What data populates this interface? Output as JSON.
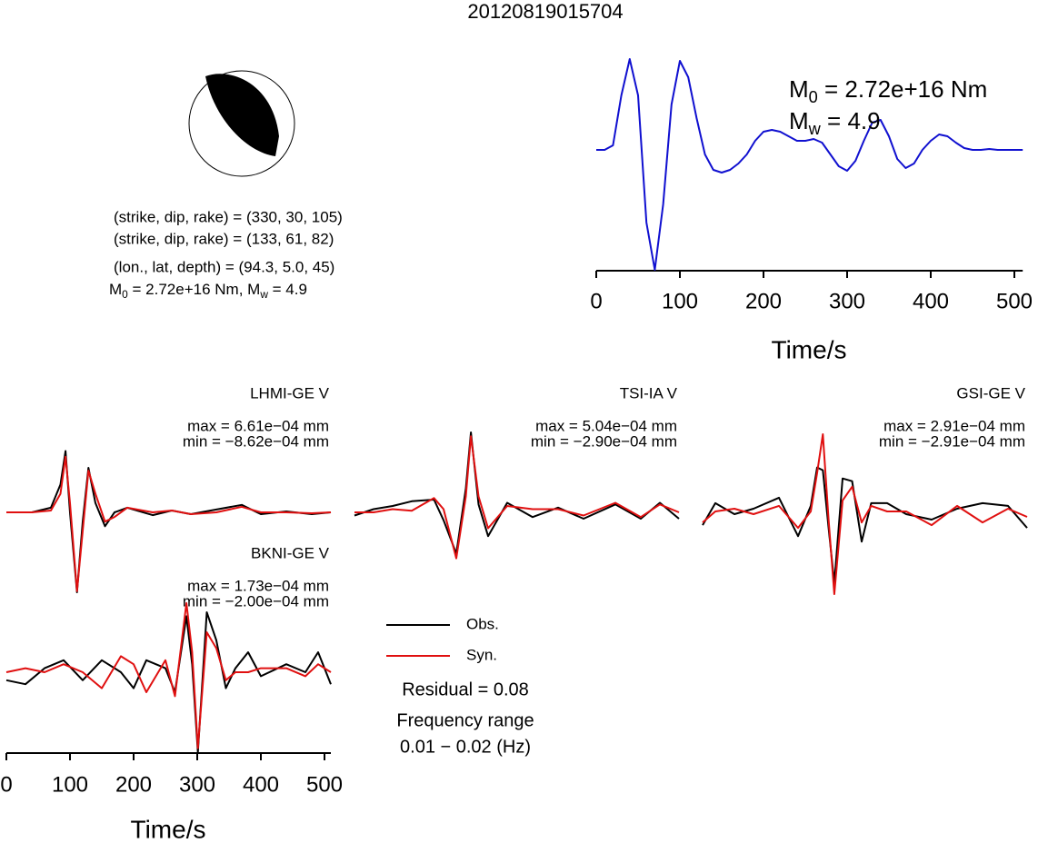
{
  "title": "20120819015704",
  "focal_mechanism": {
    "lines": [
      "(strike, dip, rake) = (330, 30, 105)",
      "(strike, dip, rake) = (133, 61, 82)",
      "(lon., lat, depth) = (94.3, 5.0, 45)"
    ],
    "moment_line": [
      "M",
      "0",
      " = 2.72e+16 Nm, M",
      "w",
      " = 4.9"
    ]
  },
  "summary": {
    "residual": "Residual = 0.08",
    "frequency_label": "Frequency range",
    "frequency": "0.01 − 0.02 (Hz)"
  },
  "chart_data": [
    {
      "type": "line",
      "annotations": [
        [
          "M",
          "0",
          " = 2.72e+16 Nm"
        ],
        [
          "M",
          "w",
          " = 4.9"
        ]
      ],
      "xlabel": "Time/s",
      "xlim": [
        0,
        510
      ],
      "xticks": [
        0,
        100,
        200,
        300,
        400,
        500
      ],
      "x": [
        0,
        10,
        20,
        30,
        40,
        50,
        60,
        70,
        80,
        90,
        100,
        110,
        120,
        130,
        140,
        150,
        160,
        170,
        180,
        190,
        200,
        210,
        220,
        230,
        240,
        250,
        260,
        270,
        280,
        290,
        300,
        310,
        320,
        330,
        340,
        350,
        360,
        370,
        380,
        390,
        400,
        410,
        420,
        430,
        440,
        450,
        460,
        470,
        480,
        490,
        500,
        510
      ],
      "series": [
        {
          "color": "#1010d0",
          "values": [
            0,
            0,
            0.05,
            0.6,
            1.0,
            0.6,
            -0.8,
            -1.32,
            -0.6,
            0.5,
            0.98,
            0.8,
            0.35,
            -0.05,
            -0.22,
            -0.25,
            -0.22,
            -0.15,
            -0.05,
            0.1,
            0.2,
            0.22,
            0.2,
            0.15,
            0.1,
            0.1,
            0.12,
            0.08,
            -0.05,
            -0.18,
            -0.23,
            -0.12,
            0.1,
            0.3,
            0.33,
            0.15,
            -0.1,
            -0.2,
            -0.15,
            0.0,
            0.1,
            0.17,
            0.15,
            0.08,
            0.02,
            0,
            0,
            0.01,
            0,
            0,
            0,
            0
          ]
        }
      ]
    },
    {
      "type": "line",
      "title": "LHMI-GE V",
      "annotations": [
        "max = 6.61e−04 mm",
        "min = −8.62e−04 mm"
      ],
      "x": [
        0,
        40,
        70,
        85,
        93,
        100,
        111,
        120,
        129,
        140,
        155,
        170,
        190,
        230,
        260,
        290,
        330,
        370,
        400,
        440,
        480,
        510
      ],
      "series": [
        {
          "name": "Obs.",
          "color": "#000000",
          "values": [
            0,
            0,
            5e-05,
            0.0003,
            0.000661,
            0,
            -0.000862,
            -0.0001,
            0.00048,
            0.0001,
            -0.00015,
            0,
            5e-05,
            -3e-05,
            2e-05,
            -2e-05,
            3e-05,
            8e-05,
            -2e-05,
            1e-05,
            -2e-05,
            0
          ]
        },
        {
          "name": "Syn.",
          "color": "#e01010",
          "values": [
            0,
            0,
            2e-05,
            0.0002,
            0.0006,
            0.0001,
            -0.00085,
            -0.0002,
            0.00045,
            0.0002,
            -0.0001,
            -5e-05,
            5e-05,
            0,
            2e-05,
            -2e-05,
            0,
            6e-05,
            0,
            0,
            -1e-05,
            0
          ]
        }
      ]
    },
    {
      "type": "line",
      "title": "TSI-IA V",
      "annotations": [
        "max = 5.04e−04 mm",
        "min = −2.90e−04 mm"
      ],
      "x": [
        0,
        30,
        60,
        90,
        125,
        140,
        160,
        175,
        183,
        195,
        210,
        240,
        280,
        320,
        360,
        410,
        450,
        480,
        510
      ],
      "series": [
        {
          "name": "Obs.",
          "color": "#000000",
          "values": [
            -2e-05,
            2e-05,
            4e-05,
            7e-05,
            8e-05,
            -5e-05,
            -0.00026,
            0.00015,
            0.000504,
            5e-05,
            -0.00015,
            6e-05,
            -3e-05,
            3e-05,
            -4e-05,
            5e-05,
            -4e-05,
            6e-05,
            -4e-05
          ]
        },
        {
          "name": "Syn.",
          "color": "#e01010",
          "values": [
            0,
            0,
            2e-05,
            1e-05,
            9e-05,
            2e-05,
            -0.00029,
            0.0001,
            0.00048,
            0.0001,
            -0.0001,
            4e-05,
            2e-05,
            2e-05,
            -2e-05,
            6e-05,
            -3e-05,
            5e-05,
            0
          ]
        }
      ]
    },
    {
      "type": "line",
      "title": "GSI-GE V",
      "annotations": [
        "max = 2.91e−04 mm",
        "min = −2.91e−04 mm"
      ],
      "x": [
        0,
        20,
        50,
        80,
        120,
        150,
        170,
        180,
        189,
        198,
        207,
        220,
        235,
        250,
        265,
        290,
        320,
        360,
        400,
        440,
        480,
        510
      ],
      "series": [
        {
          "name": "Obs.",
          "color": "#000000",
          "values": [
            -4e-05,
            4e-05,
            0,
            2e-05,
            6e-05,
            -8e-05,
            3e-05,
            0.00017,
            0.00016,
            -5e-05,
            -0.00025,
            0.00013,
            0.00012,
            -0.0001,
            4e-05,
            4e-05,
            0,
            -2e-05,
            2e-05,
            4e-05,
            3e-05,
            -5e-05
          ]
        },
        {
          "name": "Syn.",
          "color": "#e01010",
          "values": [
            -3e-05,
            1e-05,
            2e-05,
            0,
            3e-05,
            -5e-05,
            1e-05,
            0.00015,
            0.000291,
            -2e-05,
            -0.000291,
            5e-05,
            0.0001,
            -3e-05,
            3e-05,
            1e-05,
            1e-05,
            -4e-05,
            3e-05,
            -3e-05,
            2e-05,
            -1e-05
          ]
        }
      ]
    },
    {
      "type": "line",
      "title": "BKNI-GE V",
      "annotations": [
        "max = 1.73e−04 mm",
        "min = −2.00e−04 mm"
      ],
      "xlabel": "Time/s",
      "xlim": [
        0,
        510
      ],
      "xticks": [
        0,
        100,
        200,
        300,
        400,
        500
      ],
      "x": [
        0,
        30,
        60,
        90,
        120,
        150,
        180,
        200,
        220,
        250,
        265,
        283,
        292,
        301,
        315,
        330,
        345,
        360,
        380,
        400,
        440,
        470,
        490,
        510
      ],
      "series": [
        {
          "name": "Obs.",
          "color": "#000000",
          "values": [
            -2e-05,
            -3e-05,
            1e-05,
            3e-05,
            -2e-05,
            3e-05,
            0,
            -4e-05,
            3e-05,
            1e-05,
            -5e-05,
            0.00014,
            2e-05,
            -0.0002,
            0.00015,
            8e-05,
            -4e-05,
            1e-05,
            5e-05,
            -1e-05,
            2e-05,
            0,
            5e-05,
            -3e-05
          ]
        },
        {
          "name": "Syn.",
          "color": "#e01010",
          "values": [
            0,
            1e-05,
            0,
            2e-05,
            0,
            -4e-05,
            4e-05,
            2e-05,
            -5e-05,
            3e-05,
            -6e-05,
            0.000173,
            5e-05,
            -0.00019,
            0.0001,
            6e-05,
            -2e-05,
            0,
            0,
            1e-05,
            1e-05,
            -1e-05,
            2e-05,
            0
          ]
        }
      ]
    }
  ]
}
